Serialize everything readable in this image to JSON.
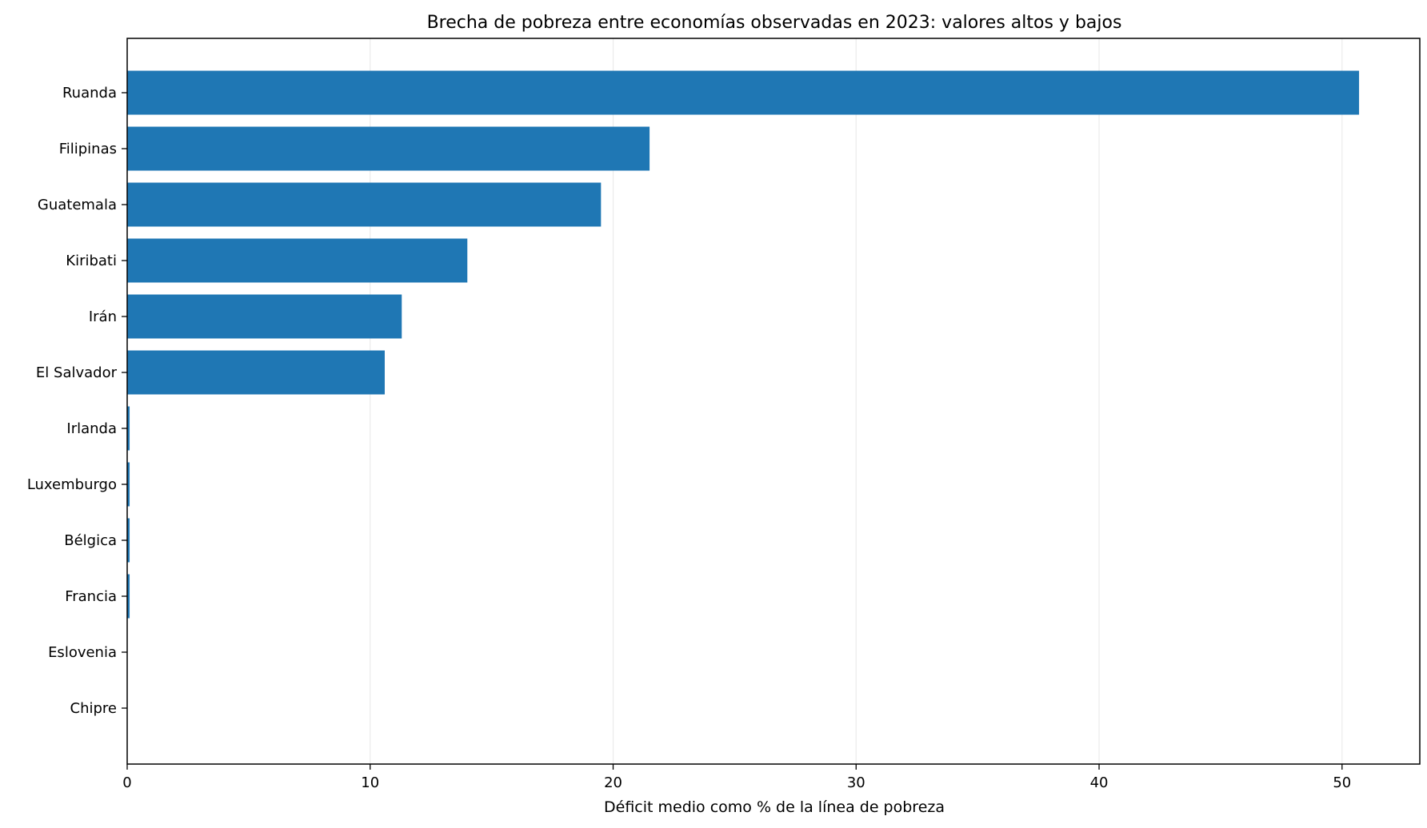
{
  "chart_data": {
    "type": "bar",
    "orientation": "horizontal",
    "title": "Brecha de pobreza entre economías observadas en 2023: valores altos y bajos",
    "xlabel": "Déficit medio como % de la línea de pobreza",
    "ylabel": "",
    "categories": [
      "Ruanda",
      "Filipinas",
      "Guatemala",
      "Kiribati",
      "Irán",
      "El Salvador",
      "Irlanda",
      "Luxemburgo",
      "Bélgica",
      "Francia",
      "Eslovenia",
      "Chipre"
    ],
    "values": [
      50.7,
      21.5,
      19.5,
      14.0,
      11.3,
      10.6,
      0.1,
      0.1,
      0.1,
      0.1,
      0.0,
      0.0
    ],
    "xlim": [
      0,
      53.2
    ],
    "xticks": [
      0,
      10,
      20,
      30,
      40,
      50
    ],
    "xtick_labels": [
      "0",
      "10",
      "20",
      "30",
      "40",
      "50"
    ],
    "grid": true,
    "bar_color": "#1f77b4",
    "grid_color": "#ebebeb"
  }
}
